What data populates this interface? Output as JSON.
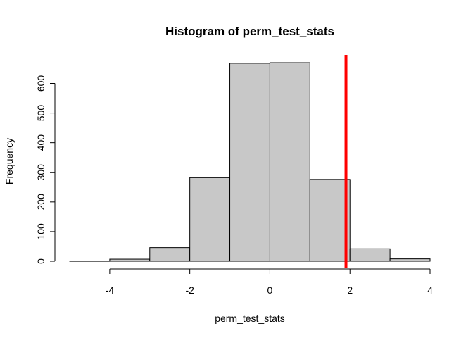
{
  "chart_data": {
    "type": "bar",
    "title": "Histogram of perm_test_stats",
    "xlabel": "perm_test_stats",
    "ylabel": "Frequency",
    "bins": [
      {
        "x0": -5,
        "x1": -4,
        "count": 1
      },
      {
        "x0": -4,
        "x1": -3,
        "count": 7
      },
      {
        "x0": -3,
        "x1": -2,
        "count": 46
      },
      {
        "x0": -2,
        "x1": -1,
        "count": 282
      },
      {
        "x0": -1,
        "x1": 0,
        "count": 668
      },
      {
        "x0": 0,
        "x1": 1,
        "count": 670
      },
      {
        "x0": 1,
        "x1": 2,
        "count": 276
      },
      {
        "x0": 2,
        "x1": 3,
        "count": 42
      },
      {
        "x0": 3,
        "x1": 4,
        "count": 8
      }
    ],
    "x_ticks": [
      -4,
      -2,
      0,
      2,
      4
    ],
    "y_ticks": [
      0,
      100,
      200,
      300,
      400,
      500,
      600
    ],
    "xlim": [
      -5,
      4
    ],
    "ylim": [
      0,
      670
    ],
    "vline": {
      "x": 1.9,
      "color": "#ff0000"
    },
    "bar_color": "#c8c8c8",
    "grid": false,
    "legend": "none"
  }
}
